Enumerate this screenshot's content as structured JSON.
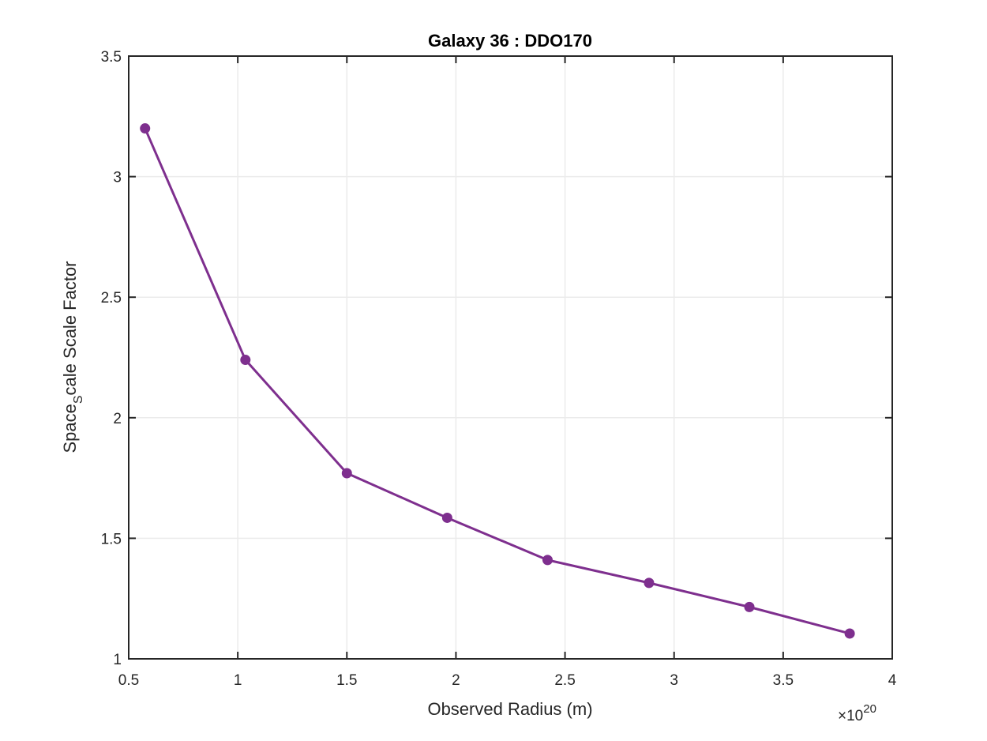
{
  "chart_data": {
    "type": "line",
    "title": "Galaxy 36 : DDO170",
    "xlabel": "Observed Radius (m)",
    "ylabel_main": "Space",
    "ylabel_sub": "S",
    "ylabel_rest": "cale Scale Factor",
    "x_exponent_prefix": "×10",
    "x_exponent_power": "20",
    "xlim": [
      0.5,
      4
    ],
    "ylim": [
      1,
      3.5
    ],
    "xticks": [
      0.5,
      1,
      1.5,
      2,
      2.5,
      3,
      3.5,
      4
    ],
    "xtick_labels": [
      "0.5",
      "1",
      "1.5",
      "2",
      "2.5",
      "3",
      "3.5",
      "4"
    ],
    "yticks": [
      1,
      1.5,
      2,
      2.5,
      3,
      3.5
    ],
    "ytick_labels": [
      "1",
      "1.5",
      "2",
      "2.5",
      "3",
      "3.5"
    ],
    "grid": true,
    "series": [
      {
        "color": "#7E2F8E",
        "x": [
          0.575,
          1.035,
          1.5,
          1.96,
          2.42,
          2.885,
          3.345,
          3.805
        ],
        "y": [
          3.2,
          2.24,
          1.77,
          1.585,
          1.41,
          1.315,
          1.215,
          1.105
        ]
      }
    ]
  }
}
